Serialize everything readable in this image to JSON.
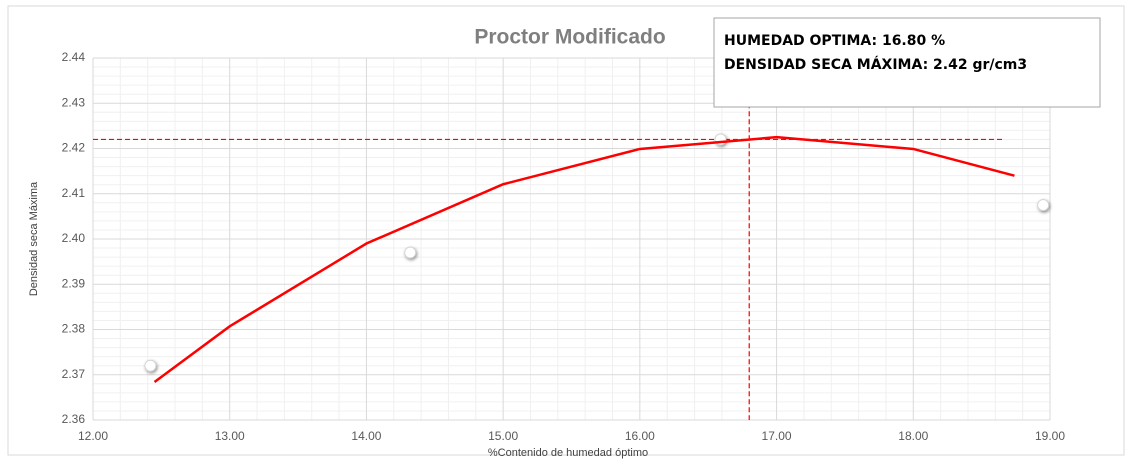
{
  "chart_data": {
    "type": "scatter",
    "title": "Proctor Modificado",
    "x_label": "%Contenido de humedad óptimo",
    "y_label": "Densidad seca Máxima",
    "annotation": [
      "HUMEDAD OPTIMA: 16.80 %",
      "DENSIDAD SECA MÁXIMA: 2.42 gr/cm3"
    ],
    "xlim": [
      12,
      19
    ],
    "xticks": [
      {
        "value": 12,
        "label": "12.00"
      },
      {
        "value": 13,
        "label": "13.00"
      },
      {
        "value": 14,
        "label": "14.00"
      },
      {
        "value": 15,
        "label": "15.00"
      },
      {
        "value": 16,
        "label": "16.00"
      },
      {
        "value": 17,
        "label": "17.00"
      },
      {
        "value": 18,
        "label": "18.00"
      },
      {
        "value": 19,
        "label": "19.00"
      }
    ],
    "ylim": [
      2.36,
      2.44
    ],
    "yticks": [
      2.36,
      2.37,
      2.38,
      2.39,
      {
        "value": 2.4,
        "label": "2.40"
      },
      2.41,
      2.42,
      2.43,
      2.44
    ],
    "grid": true,
    "minor_grid": true,
    "series": [
      {
        "style": "markers",
        "color": "#ffffff",
        "x": [
          12.42,
          14.32,
          16.59,
          18.95
        ],
        "values": [
          2.372,
          2.397,
          2.422,
          2.4075
        ]
      },
      {
        "style": "line",
        "color": "#ff0000",
        "x": [
          12.45,
          13,
          14,
          15,
          16,
          17,
          18,
          18.74
        ],
        "values": [
          2.3684,
          2.3807,
          2.399,
          2.4121,
          2.4199,
          2.4225,
          2.4199,
          2.414
        ]
      }
    ],
    "reference_lines": [
      {
        "axis": "x",
        "value": 16.8,
        "from": 2.36,
        "to": 2.43,
        "color": "#ff0000"
      },
      {
        "axis": "y",
        "value": 2.422,
        "from": 12,
        "to": 18.67,
        "color": "#ff0000"
      }
    ]
  }
}
